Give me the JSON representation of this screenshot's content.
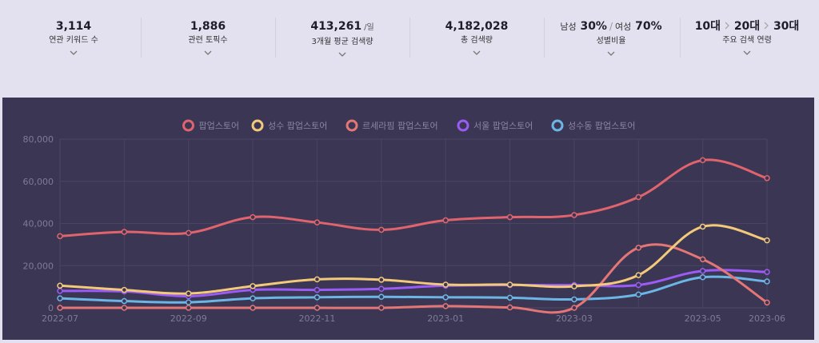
{
  "stats": [
    {
      "value": "3,114",
      "label": "연관 키워드 수"
    },
    {
      "value": "1,886",
      "label": "관련 토픽수"
    },
    {
      "value": "413,261",
      "unit": "/일",
      "label": "3개월 평균 검색량"
    },
    {
      "value": "4,182,028",
      "label": "총 검색량"
    },
    {
      "male_label": "남성",
      "male_value": "30%",
      "sep": "/",
      "female_label": "여성",
      "female_value": "70%",
      "label": "성별비율"
    },
    {
      "ages": [
        "10대",
        "20대",
        "30대"
      ],
      "label": "주요 검색 연령"
    }
  ],
  "chart_data": {
    "type": "line",
    "x": [
      "2022-07",
      "2022-08",
      "2022-09",
      "2022-10",
      "2022-11",
      "2022-12",
      "2023-01",
      "2023-02",
      "2023-03",
      "2023-04",
      "2023-05",
      "2023-06"
    ],
    "x_tick_labels": [
      "2022-07",
      "2022-09",
      "2022-11",
      "2023-01",
      "2023-03",
      "2023-05",
      "2023-06"
    ],
    "y_tick_labels": [
      "0",
      "20,000",
      "40,000",
      "60,000",
      "80,000"
    ],
    "ylim": [
      0,
      80000
    ],
    "grid": true,
    "legend_position": "top-center",
    "series": [
      {
        "name": "팝업스토어",
        "color": "#e0646e",
        "values": [
          34000,
          36000,
          35500,
          43000,
          40500,
          37000,
          41500,
          43000,
          44000,
          52500,
          70000,
          61500
        ]
      },
      {
        "name": "성수 팝업스토어",
        "color": "#f3c97a",
        "values": [
          10500,
          8500,
          6800,
          10300,
          13500,
          13300,
          11000,
          11000,
          10200,
          15500,
          38500,
          32000
        ]
      },
      {
        "name": "르세라핌 팝업스토어",
        "color": "#e47676",
        "values": [
          0,
          0,
          0,
          0,
          0,
          0,
          800,
          200,
          0,
          28500,
          23000,
          2500
        ]
      },
      {
        "name": "서울 팝업스토어",
        "color": "#9a5cf4",
        "values": [
          8000,
          7800,
          5500,
          8500,
          8500,
          9000,
          10500,
          10800,
          10800,
          10800,
          17500,
          17000
        ]
      },
      {
        "name": "성수동 팝업스토어",
        "color": "#6cb6e6",
        "values": [
          4500,
          3200,
          2600,
          4500,
          5000,
          5200,
          5000,
          4800,
          4000,
          6300,
          14500,
          12500
        ]
      }
    ]
  }
}
